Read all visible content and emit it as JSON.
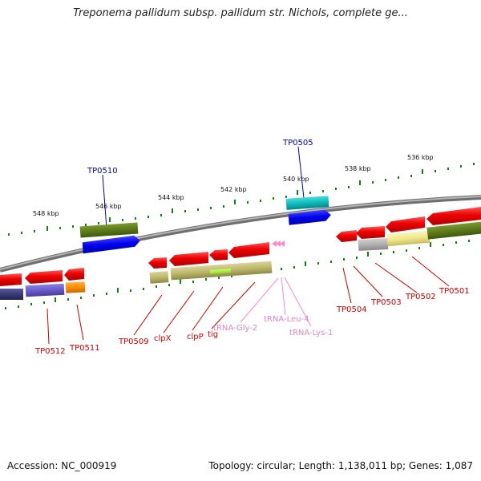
{
  "title": "Treponema pallidum subsp. pallidum str. Nichols, complete ge...",
  "footer": {
    "accession": "Accession: NC_000919",
    "summary": "Topology: circular; Length: 1,138,011 bp; Genes: 1,087"
  },
  "scale_labels": [
    "548 kbp",
    "546 kbp",
    "544 kbp",
    "542 kbp",
    "540 kbp",
    "538 kbp",
    "536 kbp"
  ],
  "gene_labels": {
    "tp0510": "TP0510",
    "tp0505": "TP0505",
    "tp0512": "TP0512",
    "tp0511": "TP0511",
    "tp0509": "TP0509",
    "clpx": "clpX",
    "clpp": "clpP",
    "tig": "tig",
    "trna_gly2": "tRNA-Gly-2",
    "trna_leu4": "tRNA-Leu-4",
    "trna_lys1": "tRNA-Lys-1",
    "tp0504": "TP0504",
    "tp0503": "TP0503",
    "tp0502": "TP0502",
    "tp0501": "TP0501"
  },
  "colors": {
    "cds": "#ee0000",
    "cds_label": "#cc0000",
    "trna": "#ff88cc",
    "trna_label": "#dd88bb",
    "link_label": "#0000aa",
    "backbone": "#8a8a8a",
    "tick": "#1a7a1a"
  }
}
